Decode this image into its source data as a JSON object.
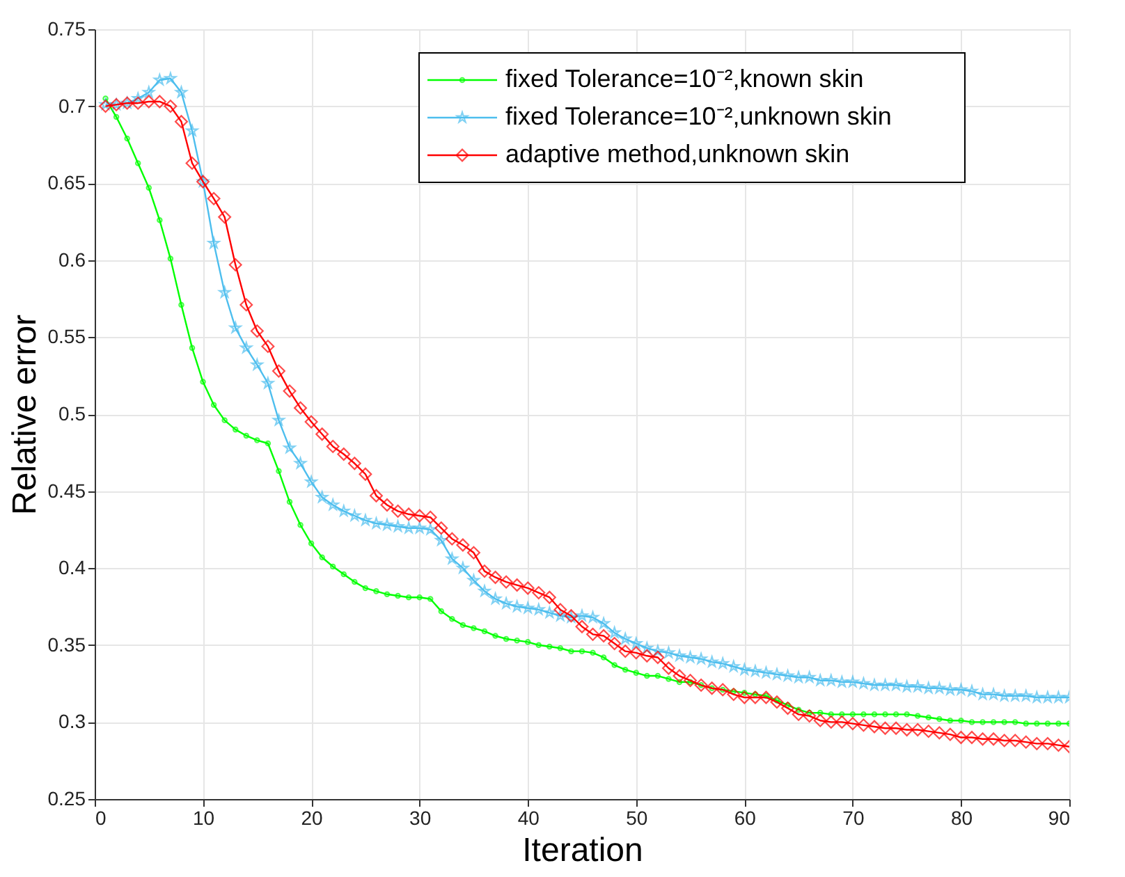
{
  "chart_data": {
    "type": "line",
    "xlabel": "Iteration",
    "ylabel": "Relative error",
    "xlim": [
      0,
      90
    ],
    "xticks": [
      0,
      10,
      20,
      30,
      40,
      50,
      60,
      70,
      80,
      90
    ],
    "ylim": [
      0.25,
      0.75
    ],
    "yticks": [
      0.25,
      0.3,
      0.35,
      0.4,
      0.45,
      0.5,
      0.55,
      0.6,
      0.65,
      0.7,
      0.75
    ],
    "grid": true,
    "legend": "top right",
    "x": [
      1,
      2,
      3,
      4,
      5,
      6,
      7,
      8,
      9,
      10,
      11,
      12,
      13,
      14,
      15,
      16,
      17,
      18,
      19,
      20,
      21,
      22,
      23,
      24,
      25,
      26,
      27,
      28,
      29,
      30,
      31,
      32,
      33,
      34,
      35,
      36,
      37,
      38,
      39,
      40,
      41,
      42,
      43,
      44,
      45,
      46,
      47,
      48,
      49,
      50,
      51,
      52,
      53,
      54,
      55,
      56,
      57,
      58,
      59,
      60,
      61,
      62,
      63,
      64,
      65,
      66,
      67,
      68,
      69,
      70,
      71,
      72,
      73,
      74,
      75,
      76,
      77,
      78,
      79,
      80,
      81,
      82,
      83,
      84,
      85,
      86,
      87,
      88,
      89,
      90
    ],
    "series": [
      {
        "name": "fixed Tolerance=10⁻²,known skin",
        "color": "#00ff00",
        "marker": "circle",
        "values": [
          0.705,
          0.693,
          0.679,
          0.663,
          0.647,
          0.626,
          0.601,
          0.571,
          0.543,
          0.521,
          0.506,
          0.496,
          0.49,
          0.486,
          0.483,
          0.481,
          0.463,
          0.443,
          0.428,
          0.416,
          0.407,
          0.401,
          0.396,
          0.391,
          0.387,
          0.385,
          0.383,
          0.382,
          0.381,
          0.381,
          0.38,
          0.372,
          0.367,
          0.363,
          0.361,
          0.359,
          0.356,
          0.354,
          0.353,
          0.352,
          0.35,
          0.349,
          0.348,
          0.346,
          0.346,
          0.345,
          0.342,
          0.337,
          0.334,
          0.332,
          0.33,
          0.33,
          0.328,
          0.326,
          0.326,
          0.324,
          0.322,
          0.321,
          0.32,
          0.319,
          0.318,
          0.317,
          0.314,
          0.311,
          0.308,
          0.306,
          0.306,
          0.305,
          0.305,
          0.305,
          0.305,
          0.305,
          0.305,
          0.305,
          0.305,
          0.304,
          0.303,
          0.302,
          0.301,
          0.301,
          0.3,
          0.3,
          0.3,
          0.3,
          0.3,
          0.299,
          0.299,
          0.299,
          0.299,
          0.299
        ]
      },
      {
        "name": "fixed Tolerance=10⁻²,unknown skin",
        "color": "#4dbeee",
        "marker": "star",
        "values": [
          0.701,
          0.701,
          0.702,
          0.705,
          0.709,
          0.717,
          0.718,
          0.709,
          0.684,
          0.651,
          0.611,
          0.579,
          0.556,
          0.543,
          0.532,
          0.52,
          0.496,
          0.478,
          0.468,
          0.456,
          0.446,
          0.441,
          0.437,
          0.434,
          0.431,
          0.429,
          0.428,
          0.427,
          0.426,
          0.426,
          0.425,
          0.418,
          0.406,
          0.4,
          0.392,
          0.385,
          0.38,
          0.377,
          0.375,
          0.374,
          0.373,
          0.371,
          0.369,
          0.368,
          0.369,
          0.368,
          0.364,
          0.358,
          0.354,
          0.351,
          0.348,
          0.346,
          0.345,
          0.343,
          0.342,
          0.341,
          0.339,
          0.338,
          0.336,
          0.334,
          0.333,
          0.332,
          0.331,
          0.33,
          0.329,
          0.329,
          0.327,
          0.327,
          0.326,
          0.326,
          0.325,
          0.324,
          0.324,
          0.324,
          0.323,
          0.323,
          0.322,
          0.322,
          0.321,
          0.321,
          0.32,
          0.318,
          0.318,
          0.317,
          0.317,
          0.317,
          0.316,
          0.316,
          0.316,
          0.316
        ]
      },
      {
        "name": "adaptive method,unknown skin",
        "color": "#ff0000",
        "marker": "diamond",
        "values": [
          0.7,
          0.701,
          0.702,
          0.702,
          0.703,
          0.703,
          0.7,
          0.69,
          0.663,
          0.651,
          0.64,
          0.628,
          0.597,
          0.571,
          0.554,
          0.544,
          0.528,
          0.515,
          0.504,
          0.495,
          0.487,
          0.479,
          0.474,
          0.468,
          0.461,
          0.447,
          0.441,
          0.437,
          0.435,
          0.434,
          0.433,
          0.426,
          0.419,
          0.415,
          0.41,
          0.398,
          0.394,
          0.391,
          0.389,
          0.387,
          0.384,
          0.381,
          0.373,
          0.369,
          0.362,
          0.357,
          0.356,
          0.351,
          0.346,
          0.345,
          0.343,
          0.342,
          0.335,
          0.33,
          0.327,
          0.324,
          0.322,
          0.321,
          0.318,
          0.316,
          0.316,
          0.316,
          0.313,
          0.309,
          0.305,
          0.304,
          0.301,
          0.3,
          0.3,
          0.299,
          0.298,
          0.297,
          0.296,
          0.296,
          0.295,
          0.295,
          0.294,
          0.293,
          0.292,
          0.29,
          0.29,
          0.289,
          0.289,
          0.288,
          0.288,
          0.287,
          0.286,
          0.286,
          0.285,
          0.284
        ]
      }
    ]
  }
}
